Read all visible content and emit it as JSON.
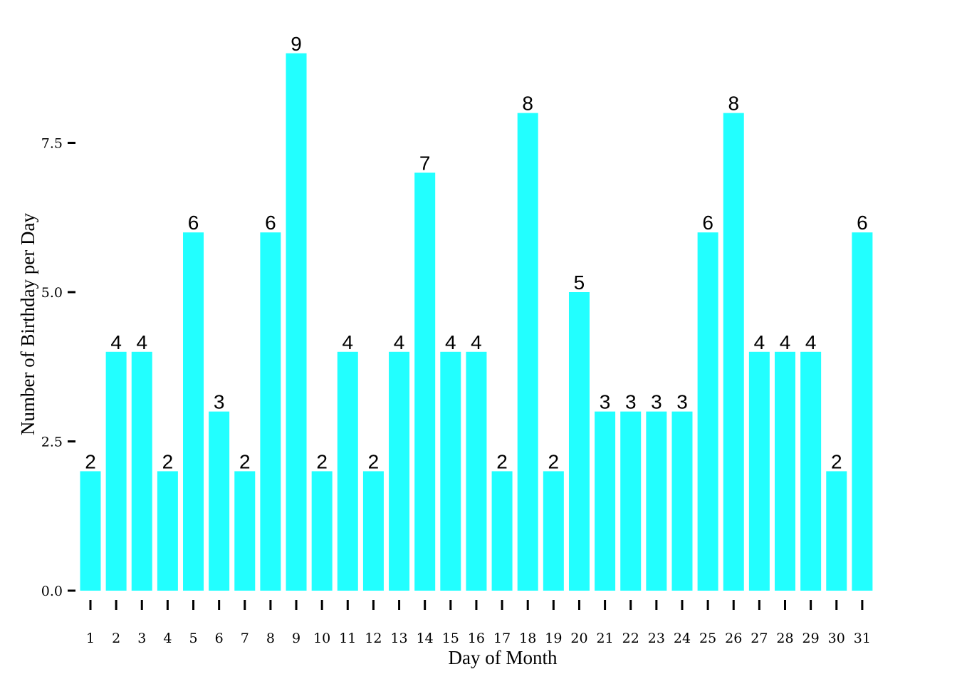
{
  "chart_data": {
    "type": "bar",
    "title": "",
    "xlabel": "Day of Month",
    "ylabel": "Number of Birthday per Day",
    "categories": [
      "1",
      "2",
      "3",
      "4",
      "5",
      "6",
      "7",
      "8",
      "9",
      "10",
      "11",
      "12",
      "13",
      "14",
      "15",
      "16",
      "17",
      "18",
      "19",
      "20",
      "21",
      "22",
      "23",
      "24",
      "25",
      "26",
      "27",
      "28",
      "29",
      "30",
      "31"
    ],
    "values": [
      2,
      4,
      4,
      2,
      6,
      3,
      2,
      6,
      9,
      2,
      4,
      2,
      4,
      7,
      4,
      4,
      2,
      8,
      2,
      5,
      3,
      3,
      3,
      3,
      6,
      8,
      4,
      4,
      4,
      2,
      6
    ],
    "ylim": [
      0,
      9
    ],
    "yticks": [
      "0.0",
      "2.5",
      "5.0",
      "7.5"
    ],
    "bar_color": "#22ffff",
    "grid": false,
    "legend": "none"
  }
}
